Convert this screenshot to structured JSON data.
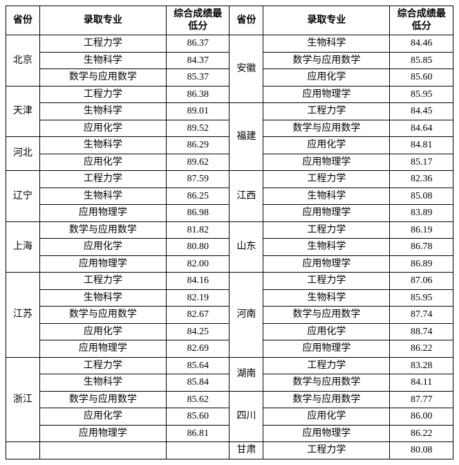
{
  "headers": {
    "province": "省份",
    "major": "录取专业",
    "score": "综合成绩最低分"
  },
  "rows": [
    {
      "lp": "北京",
      "lp_rs": 3,
      "lm": "工程力学",
      "ls": "86.37",
      "rp": "安徽",
      "rp_rs": 4,
      "rm": "生物科学",
      "rs": "84.46"
    },
    {
      "lp": "",
      "lp_rs": 0,
      "lm": "生物科学",
      "ls": "84.37",
      "rp": "",
      "rp_rs": 0,
      "rm": "数学与应用数学",
      "rs": "85.85"
    },
    {
      "lp": "",
      "lp_rs": 0,
      "lm": "数学与应用数学",
      "ls": "85.37",
      "rp": "",
      "rp_rs": 0,
      "rm": "应用化学",
      "rs": "85.60"
    },
    {
      "lp": "天津",
      "lp_rs": 3,
      "lm": "工程力学",
      "ls": "86.38",
      "rp": "",
      "rp_rs": 0,
      "rm": "应用物理学",
      "rs": "85.95"
    },
    {
      "lp": "",
      "lp_rs": 0,
      "lm": "生物科学",
      "ls": "89.01",
      "rp": "福建",
      "rp_rs": 4,
      "rm": "工程力学",
      "rs": "84.45"
    },
    {
      "lp": "",
      "lp_rs": 0,
      "lm": "应用化学",
      "ls": "89.52",
      "rp": "",
      "rp_rs": 0,
      "rm": "数学与应用数学",
      "rs": "84.64"
    },
    {
      "lp": "河北",
      "lp_rs": 2,
      "lm": "生物科学",
      "ls": "86.29",
      "rp": "",
      "rp_rs": 0,
      "rm": "应用化学",
      "rs": "84.81"
    },
    {
      "lp": "",
      "lp_rs": 0,
      "lm": "应用化学",
      "ls": "89.62",
      "rp": "",
      "rp_rs": 0,
      "rm": "应用物理学",
      "rs": "85.17"
    },
    {
      "lp": "辽宁",
      "lp_rs": 3,
      "lm": "工程力学",
      "ls": "87.59",
      "rp": "江西",
      "rp_rs": 3,
      "rm": "工程力学",
      "rs": "82.36"
    },
    {
      "lp": "",
      "lp_rs": 0,
      "lm": "生物科学",
      "ls": "86.25",
      "rp": "",
      "rp_rs": 0,
      "rm": "生物科学",
      "rs": "85.08"
    },
    {
      "lp": "",
      "lp_rs": 0,
      "lm": "应用物理学",
      "ls": "86.98",
      "rp": "",
      "rp_rs": 0,
      "rm": "应用物理学",
      "rs": "83.89"
    },
    {
      "lp": "上海",
      "lp_rs": 3,
      "lm": "数学与应用数学",
      "ls": "81.82",
      "rp": "山东",
      "rp_rs": 3,
      "rm": "工程力学",
      "rs": "86.19"
    },
    {
      "lp": "",
      "lp_rs": 0,
      "lm": "应用化学",
      "ls": "80.80",
      "rp": "",
      "rp_rs": 0,
      "rm": "生物科学",
      "rs": "86.78"
    },
    {
      "lp": "",
      "lp_rs": 0,
      "lm": "应用物理学",
      "ls": "82.00",
      "rp": "",
      "rp_rs": 0,
      "rm": "应用物理学",
      "rs": "86.89"
    },
    {
      "lp": "江苏",
      "lp_rs": 5,
      "lm": "工程力学",
      "ls": "84.16",
      "rp": "河南",
      "rp_rs": 5,
      "rm": "工程力学",
      "rs": "87.06"
    },
    {
      "lp": "",
      "lp_rs": 0,
      "lm": "生物科学",
      "ls": "82.19",
      "rp": "",
      "rp_rs": 0,
      "rm": "生物科学",
      "rs": "85.95"
    },
    {
      "lp": "",
      "lp_rs": 0,
      "lm": "数学与应用数学",
      "ls": "82.67",
      "rp": "",
      "rp_rs": 0,
      "rm": "数学与应用数学",
      "rs": "87.74"
    },
    {
      "lp": "",
      "lp_rs": 0,
      "lm": "应用化学",
      "ls": "84.25",
      "rp": "",
      "rp_rs": 0,
      "rm": "应用化学",
      "rs": "88.74"
    },
    {
      "lp": "",
      "lp_rs": 0,
      "lm": "应用物理学",
      "ls": "82.69",
      "rp": "",
      "rp_rs": 0,
      "rm": "应用物理学",
      "rs": "86.22"
    },
    {
      "lp": "浙江",
      "lp_rs": 5,
      "lm": "工程力学",
      "ls": "85.64",
      "rp": "湖南",
      "rp_rs": 2,
      "rm": "工程力学",
      "rs": "83.28"
    },
    {
      "lp": "",
      "lp_rs": 0,
      "lm": "生物科学",
      "ls": "85.84",
      "rp": "",
      "rp_rs": 0,
      "rm": "数学与应用数学",
      "rs": "84.11"
    },
    {
      "lp": "",
      "lp_rs": 0,
      "lm": "数学与应用数学",
      "ls": "85.62",
      "rp": "四川",
      "rp_rs": 3,
      "rm": "数学与应用数学",
      "rs": "87.77"
    },
    {
      "lp": "",
      "lp_rs": 0,
      "lm": "应用化学",
      "ls": "85.60",
      "rp": "",
      "rp_rs": 0,
      "rm": "应用化学",
      "rs": "86.00"
    },
    {
      "lp": "",
      "lp_rs": 0,
      "lm": "应用物理学",
      "ls": "86.81",
      "rp": "",
      "rp_rs": 0,
      "rm": "应用物理学",
      "rs": "86.22"
    },
    {
      "lp": "",
      "lp_rs": 1,
      "lm": "",
      "ls": "",
      "rp": "甘肃",
      "rp_rs": 1,
      "rm": "工程力学",
      "rs": "80.08"
    }
  ]
}
